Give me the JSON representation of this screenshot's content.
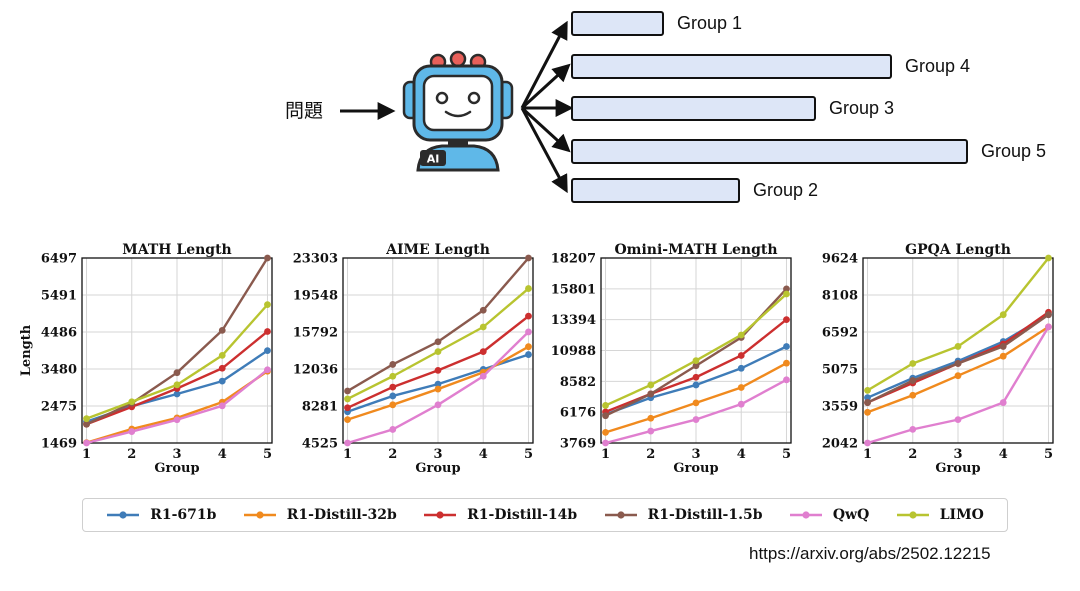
{
  "diagram": {
    "question_label": "問題",
    "robot_badge": "AI",
    "groups": [
      {
        "label": "Group 1",
        "length": 1
      },
      {
        "label": "Group 4",
        "length": 4
      },
      {
        "label": "Group 3",
        "length": 3
      },
      {
        "label": "Group 5",
        "length": 5
      },
      {
        "label": "Group 2",
        "length": 2
      }
    ]
  },
  "source_url": "https://arxiv.org/abs/2502.12215",
  "colors": {
    "bar_fill": "#dde6f7",
    "bar_stroke": "#111111",
    "robot_blue": "#5fb8e8",
    "robot_dark": "#2b2b2b",
    "antenna_red": "#e8605a"
  },
  "series_styles": [
    {
      "name": "R1-671b",
      "color": "#3f7cb8"
    },
    {
      "name": "R1-Distill-32b",
      "color": "#f08a1e"
    },
    {
      "name": "R1-Distill-14b",
      "color": "#cc2f2f"
    },
    {
      "name": "R1-Distill-1.5b",
      "color": "#8a5a4e"
    },
    {
      "name": "QwQ",
      "color": "#e07fcf"
    },
    {
      "name": "LIMO",
      "color": "#b8c430"
    }
  ],
  "chart_data": [
    {
      "type": "line",
      "title": "MATH Length",
      "xlabel": "Group",
      "ylabel": "Length",
      "x": [
        1,
        2,
        3,
        4,
        5
      ],
      "yticks": [
        1469,
        2475,
        3480,
        4486,
        5491,
        6497
      ],
      "ylim": [
        1469,
        6497
      ],
      "series": [
        {
          "name": "R1-671b",
          "values": [
            2050,
            2470,
            2800,
            3150,
            3980
          ]
        },
        {
          "name": "R1-Distill-32b",
          "values": [
            1480,
            1850,
            2150,
            2580,
            3420
          ]
        },
        {
          "name": "R1-Distill-14b",
          "values": [
            1980,
            2450,
            2950,
            3500,
            4500
          ]
        },
        {
          "name": "R1-Distill-1.5b",
          "values": [
            1980,
            2550,
            3380,
            4530,
            6497
          ]
        },
        {
          "name": "QwQ",
          "values": [
            1469,
            1780,
            2100,
            2480,
            3460
          ]
        },
        {
          "name": "LIMO",
          "values": [
            2130,
            2590,
            3050,
            3850,
            5230
          ]
        }
      ]
    },
    {
      "type": "line",
      "title": "AIME Length",
      "xlabel": "Group",
      "ylabel": "",
      "x": [
        1,
        2,
        3,
        4,
        5
      ],
      "yticks": [
        4525,
        8281,
        12036,
        15792,
        19548,
        23303
      ],
      "ylim": [
        4525,
        23303
      ],
      "series": [
        {
          "name": "R1-671b",
          "values": [
            7700,
            9300,
            10500,
            12000,
            13500
          ]
        },
        {
          "name": "R1-Distill-32b",
          "values": [
            6900,
            8400,
            10000,
            11700,
            14300
          ]
        },
        {
          "name": "R1-Distill-14b",
          "values": [
            8100,
            10200,
            11900,
            13800,
            17400
          ]
        },
        {
          "name": "R1-Distill-1.5b",
          "values": [
            9800,
            12500,
            14800,
            18000,
            23303
          ]
        },
        {
          "name": "QwQ",
          "values": [
            4525,
            5900,
            8400,
            11300,
            15800
          ]
        },
        {
          "name": "LIMO",
          "values": [
            9000,
            11300,
            13800,
            16300,
            20200
          ]
        }
      ]
    },
    {
      "type": "line",
      "title": "Omini-MATH Length",
      "xlabel": "Group",
      "ylabel": "",
      "x": [
        1,
        2,
        3,
        4,
        5
      ],
      "yticks": [
        3769,
        6176,
        8582,
        10988,
        13394,
        15801,
        18207
      ],
      "ylim": [
        3769,
        18207
      ],
      "series": [
        {
          "name": "R1-671b",
          "values": [
            6000,
            7300,
            8300,
            9600,
            11300
          ]
        },
        {
          "name": "R1-Distill-32b",
          "values": [
            4600,
            5700,
            6900,
            8100,
            10000
          ]
        },
        {
          "name": "R1-Distill-14b",
          "values": [
            6200,
            7600,
            8900,
            10600,
            13400
          ]
        },
        {
          "name": "R1-Distill-1.5b",
          "values": [
            5900,
            7600,
            9800,
            12000,
            15800
          ]
        },
        {
          "name": "QwQ",
          "values": [
            3769,
            4700,
            5600,
            6800,
            8700
          ]
        },
        {
          "name": "LIMO",
          "values": [
            6700,
            8300,
            10200,
            12200,
            15400
          ]
        }
      ]
    },
    {
      "type": "line",
      "title": "GPQA Length",
      "xlabel": "Group",
      "ylabel": "",
      "x": [
        1,
        2,
        3,
        4,
        5
      ],
      "yticks": [
        2042,
        3559,
        5075,
        6592,
        8108,
        9624
      ],
      "ylim": [
        2042,
        9624
      ],
      "series": [
        {
          "name": "R1-671b",
          "values": [
            3900,
            4700,
            5400,
            6200,
            7300
          ]
        },
        {
          "name": "R1-Distill-32b",
          "values": [
            3300,
            4000,
            4800,
            5600,
            6800
          ]
        },
        {
          "name": "R1-Distill-14b",
          "values": [
            3700,
            4500,
            5300,
            6100,
            7400
          ]
        },
        {
          "name": "R1-Distill-1.5b",
          "values": [
            3700,
            4600,
            5300,
            6000,
            7300
          ]
        },
        {
          "name": "QwQ",
          "values": [
            2042,
            2600,
            3000,
            3700,
            6800
          ]
        },
        {
          "name": "LIMO",
          "values": [
            4200,
            5300,
            6000,
            7300,
            9624
          ]
        }
      ]
    }
  ]
}
